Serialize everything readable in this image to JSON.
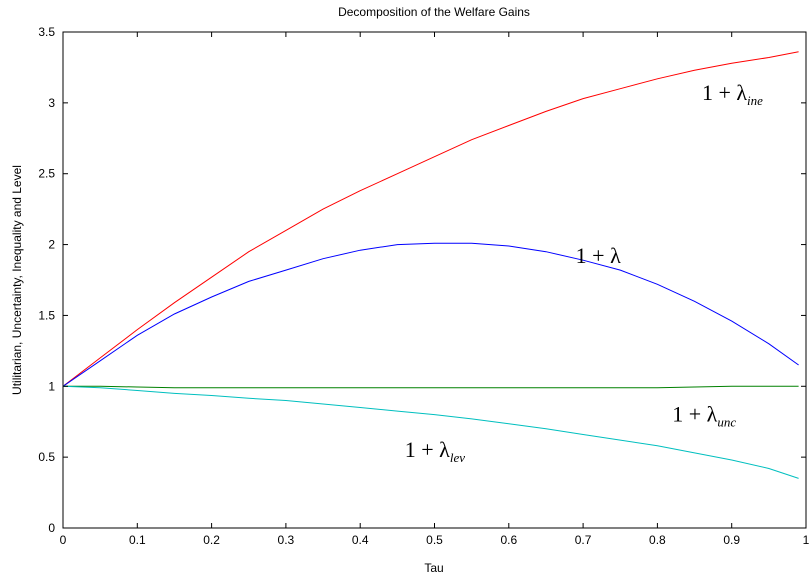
{
  "chart_data": {
    "type": "line",
    "title": "Decomposition of the Welfare Gains",
    "xlabel": "Tau",
    "ylabel": "Utilitarian, Uncertainty, Inequality and Level",
    "xlim": [
      0,
      1
    ],
    "ylim": [
      0,
      3.5
    ],
    "xticks": [
      "0",
      "0.1",
      "0.2",
      "0.3",
      "0.4",
      "0.5",
      "0.6",
      "0.7",
      "0.8",
      "0.9",
      "1"
    ],
    "yticks": [
      "0",
      "0.5",
      "1",
      "1.5",
      "2",
      "2.5",
      "3",
      "3.5"
    ],
    "grid": false,
    "x": [
      0,
      0.05,
      0.1,
      0.15,
      0.2,
      0.25,
      0.3,
      0.35,
      0.4,
      0.45,
      0.5,
      0.55,
      0.6,
      0.65,
      0.7,
      0.75,
      0.8,
      0.85,
      0.9,
      0.95,
      0.99
    ],
    "series": [
      {
        "color": "#ff0000",
        "values": [
          1.0,
          1.2,
          1.4,
          1.59,
          1.77,
          1.95,
          2.1,
          2.25,
          2.38,
          2.5,
          2.62,
          2.74,
          2.84,
          2.94,
          3.03,
          3.1,
          3.17,
          3.23,
          3.28,
          3.32,
          3.36
        ]
      },
      {
        "color": "#0000ff",
        "values": [
          1.0,
          1.18,
          1.36,
          1.51,
          1.63,
          1.74,
          1.82,
          1.9,
          1.96,
          2.0,
          2.01,
          2.01,
          1.99,
          1.95,
          1.89,
          1.82,
          1.72,
          1.6,
          1.46,
          1.3,
          1.15
        ]
      },
      {
        "color": "#008000",
        "values": [
          1.0,
          1.0,
          0.995,
          0.99,
          0.99,
          0.99,
          0.99,
          0.99,
          0.99,
          0.99,
          0.99,
          0.99,
          0.99,
          0.99,
          0.99,
          0.99,
          0.99,
          0.995,
          1.0,
          1.0,
          1.0
        ]
      },
      {
        "color": "#00bfbf",
        "values": [
          1.0,
          0.99,
          0.97,
          0.95,
          0.935,
          0.915,
          0.9,
          0.875,
          0.85,
          0.825,
          0.8,
          0.77,
          0.735,
          0.7,
          0.66,
          0.62,
          0.58,
          0.53,
          0.48,
          0.42,
          0.35
        ]
      }
    ],
    "annotations": [
      {
        "base": "1 + λ",
        "sub": "ine",
        "x": 0.86,
        "y": 3.02
      },
      {
        "base": "1 + λ",
        "sub": "",
        "x": 0.69,
        "y": 1.87
      },
      {
        "base": "1 + λ",
        "sub": "unc",
        "x": 0.82,
        "y": 0.75
      },
      {
        "base": "1 + λ",
        "sub": "lev",
        "x": 0.46,
        "y": 0.5
      }
    ]
  }
}
